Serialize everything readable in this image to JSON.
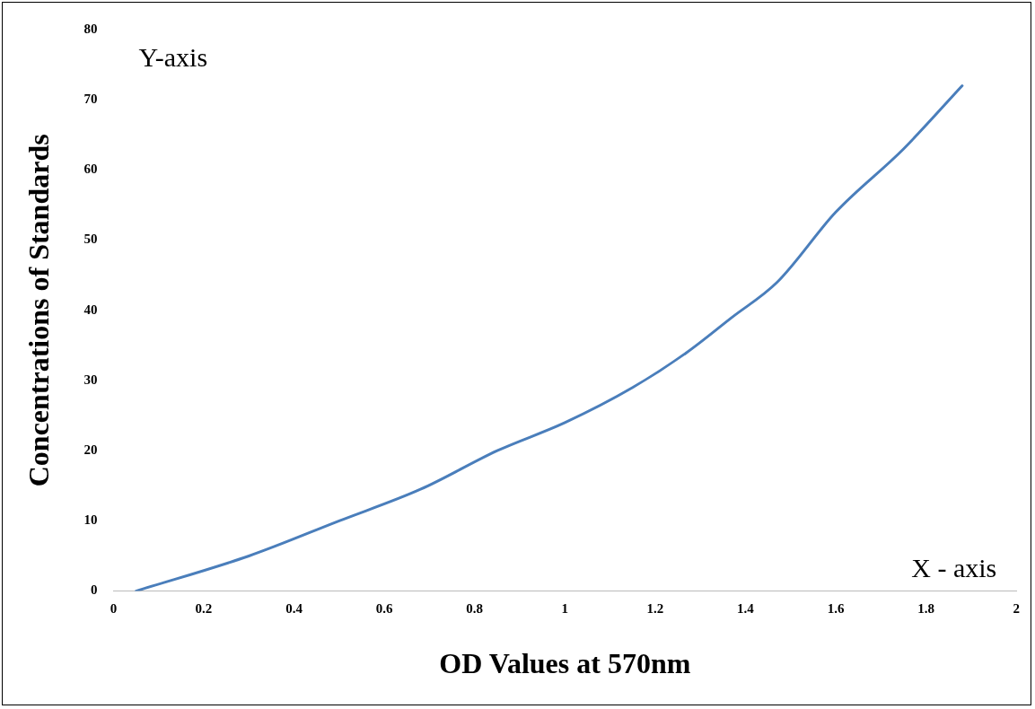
{
  "chart_data": {
    "type": "line",
    "xlabel": "OD Values at 570nm",
    "ylabel": "Concentrations of Standards",
    "annotations": [
      "Y-axis",
      "X - axis"
    ],
    "series": [
      {
        "color": "#4a7ebb",
        "x": [
          0.05,
          0.3,
          0.5,
          0.68,
          0.85,
          1.0,
          1.15,
          1.27,
          1.37,
          1.47,
          1.6,
          1.75,
          1.88
        ],
        "values": [
          0,
          5,
          10,
          14.5,
          20,
          24,
          29,
          34,
          39,
          44,
          54,
          63,
          72
        ]
      }
    ],
    "xlim": [
      0,
      2
    ],
    "xticks": [
      0,
      0.2,
      0.4,
      0.6,
      0.8,
      1,
      1.2,
      1.4,
      1.6,
      1.8,
      2
    ],
    "ylim": [
      0,
      80
    ],
    "yticks": [
      0,
      10,
      20,
      30,
      40,
      50,
      60,
      70,
      80
    ],
    "grid": false,
    "legend": false,
    "marker": "none",
    "line_style": "solid"
  }
}
